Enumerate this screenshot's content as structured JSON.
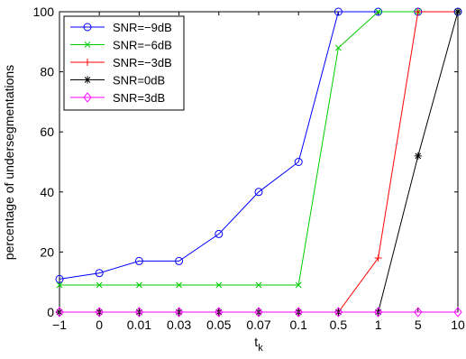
{
  "chart_data": {
    "type": "line",
    "title": "",
    "xlabel": "t",
    "xlabel_subscript": "k",
    "ylabel": "percentage of undersegmentations",
    "categories": [
      "−1",
      "0",
      "0.01",
      "0.03",
      "0.05",
      "0.07",
      "0.1",
      "0.5",
      "1",
      "5",
      "10"
    ],
    "ylim": [
      0,
      100
    ],
    "yticks": [
      0,
      20,
      40,
      60,
      80,
      100
    ],
    "grid": false,
    "legend_position": "top-left",
    "series": [
      {
        "name": "SNR=−9dB",
        "color": "#0000ff",
        "marker": "circle",
        "values": [
          11,
          13,
          17,
          17,
          26,
          40,
          50,
          100,
          100,
          100,
          100
        ]
      },
      {
        "name": "SNR=−6dB",
        "color": "#00cc00",
        "marker": "x",
        "values": [
          9,
          9,
          9,
          9,
          9,
          9,
          9,
          88,
          100,
          100,
          100
        ]
      },
      {
        "name": "SNR=−3dB",
        "color": "#ff0000",
        "marker": "plus",
        "values": [
          0,
          0,
          0,
          0,
          0,
          0,
          0,
          0,
          18,
          100,
          100
        ]
      },
      {
        "name": "SNR=0dB",
        "color": "#000000",
        "marker": "star",
        "values": [
          0,
          0,
          0,
          0,
          0,
          0,
          0,
          0,
          0,
          52,
          100
        ]
      },
      {
        "name": "SNR=3dB",
        "color": "#ff00ff",
        "marker": "diamond",
        "values": [
          0,
          0,
          0,
          0,
          0,
          0,
          0,
          0,
          0,
          0,
          0
        ]
      }
    ]
  }
}
